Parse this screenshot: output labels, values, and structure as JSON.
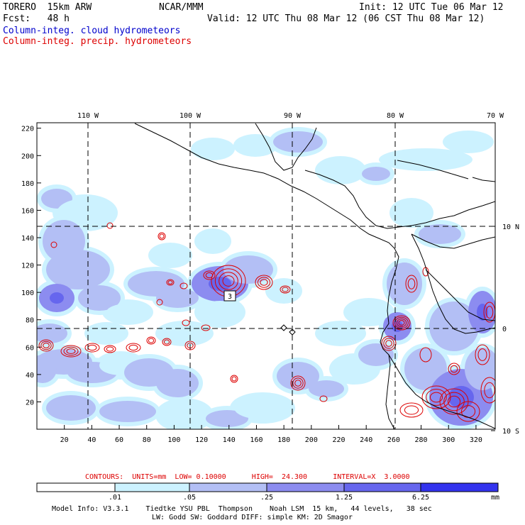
{
  "header": {
    "model_line": "TORERO  15km ARW",
    "org": "NCAR/MMM",
    "init": "Init: 12 UTC Tue 06 Mar 12",
    "fcst_line": "Fcst:   48 h",
    "valid": "Valid: 12 UTC Thu 08 Mar 12 (06 CST Thu 08 Mar 12)",
    "field1": "Column-integ. cloud hydrometeors",
    "field2": "Column-integ. precip. hydrometeors"
  },
  "colors": {
    "field1_color": "#0000cc",
    "field2_color": "#dd0000",
    "cloud_levels": [
      "#ffffff",
      "#ccf2ff",
      "#b3bff5",
      "#8c8cf0",
      "#6666ee",
      "#3333ee",
      "#1a1aee"
    ]
  },
  "map": {
    "top_lon_labels": [
      "110 W",
      "100 W",
      "90 W",
      "80 W",
      "70 W"
    ],
    "right_lat_labels": [
      "10 N",
      "0",
      "10 S"
    ],
    "y_ticks": [
      "220",
      "200",
      "180",
      "160",
      "140",
      "120",
      "100",
      "80",
      "60",
      "40",
      "20"
    ],
    "x_ticks": [
      "20",
      "40",
      "60",
      "80",
      "100",
      "120",
      "140",
      "160",
      "180",
      "200",
      "220",
      "240",
      "260",
      "280",
      "300",
      "320"
    ],
    "annotation": "3"
  },
  "contour_info": {
    "text": "CONTOURS:  UNITS=mm  LOW= 0.10000      HIGH=  24.300      INTERVAL=X  3.0000"
  },
  "colorbar": {
    "labels": [
      ".01",
      ".05",
      ".25",
      "1.25",
      "6.25"
    ],
    "unit": "mm"
  },
  "footer": {
    "line1": "Model Info: V3.3.1    Tiedtke YSU PBL  Thompson    Noah LSM  15 km,   44 levels,   38 sec",
    "line2": "LW: Godd SW: Goddard DIFF: simple KM: 2D Smagor"
  }
}
